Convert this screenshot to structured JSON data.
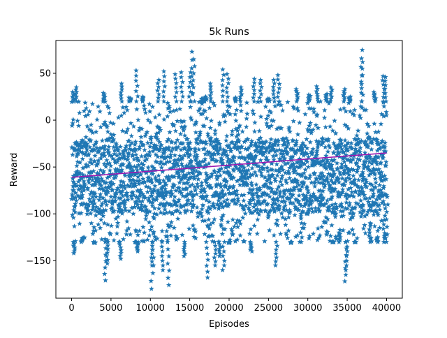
{
  "chart_data": {
    "type": "scatter",
    "title": "5k Runs",
    "xlabel": "Episodes",
    "ylabel": "Reward",
    "xlim": [
      -2000,
      42000
    ],
    "ylim": [
      -190,
      85
    ],
    "xticks": [
      0,
      5000,
      10000,
      15000,
      20000,
      25000,
      30000,
      35000,
      40000
    ],
    "xtick_labels": [
      "0",
      "5000",
      "10000",
      "15000",
      "20000",
      "25000",
      "30000",
      "35000",
      "40000"
    ],
    "yticks": [
      -150,
      -100,
      -50,
      0,
      50
    ],
    "ytick_labels": [
      "−150",
      "−100",
      "−50",
      "0",
      "50"
    ],
    "grid": false,
    "legend": "none",
    "colors": {
      "points": "#1f77b4",
      "trend": "#9e1ab0"
    },
    "series": [
      {
        "kind": "scatter",
        "marker": "star",
        "x_range": [
          0,
          40000
        ],
        "core_band": [
          -100,
          -20
        ],
        "typical_range": [
          -130,
          20
        ],
        "extremes": [
          {
            "x": 200,
            "y": 30
          },
          {
            "x": 300,
            "y": -142
          },
          {
            "x": 600,
            "y": 35
          },
          {
            "x": 1300,
            "y": -126
          },
          {
            "x": 2900,
            "y": -131
          },
          {
            "x": 4100,
            "y": 29
          },
          {
            "x": 4300,
            "y": -171
          },
          {
            "x": 4500,
            "y": -153
          },
          {
            "x": 6300,
            "y": 39
          },
          {
            "x": 6200,
            "y": -148
          },
          {
            "x": 7400,
            "y": 24
          },
          {
            "x": 8100,
            "y": -130
          },
          {
            "x": 8300,
            "y": 53
          },
          {
            "x": 8400,
            "y": -140
          },
          {
            "x": 9100,
            "y": 25
          },
          {
            "x": 10200,
            "y": -180
          },
          {
            "x": 10300,
            "y": -155
          },
          {
            "x": 11000,
            "y": 43
          },
          {
            "x": 11500,
            "y": -160
          },
          {
            "x": 11800,
            "y": 52
          },
          {
            "x": 12300,
            "y": -176
          },
          {
            "x": 13200,
            "y": 49
          },
          {
            "x": 14000,
            "y": 51
          },
          {
            "x": 14300,
            "y": -145
          },
          {
            "x": 15000,
            "y": 51
          },
          {
            "x": 15300,
            "y": 73
          },
          {
            "x": 15500,
            "y": 65
          },
          {
            "x": 16600,
            "y": 23
          },
          {
            "x": 17000,
            "y": 25
          },
          {
            "x": 17200,
            "y": -168
          },
          {
            "x": 17700,
            "y": 39
          },
          {
            "x": 18200,
            "y": -155
          },
          {
            "x": 18800,
            "y": -145
          },
          {
            "x": 19200,
            "y": 54
          },
          {
            "x": 19300,
            "y": -160
          },
          {
            "x": 19800,
            "y": 49
          },
          {
            "x": 20000,
            "y": -131
          },
          {
            "x": 20800,
            "y": 24
          },
          {
            "x": 21500,
            "y": 35
          },
          {
            "x": 22800,
            "y": -140
          },
          {
            "x": 23200,
            "y": 44
          },
          {
            "x": 24000,
            "y": 43
          },
          {
            "x": 25000,
            "y": 23
          },
          {
            "x": 25700,
            "y": 43
          },
          {
            "x": 26000,
            "y": -155
          },
          {
            "x": 26300,
            "y": 48
          },
          {
            "x": 27900,
            "y": -131
          },
          {
            "x": 28600,
            "y": 33
          },
          {
            "x": 29200,
            "y": -100
          },
          {
            "x": 30200,
            "y": 27
          },
          {
            "x": 31200,
            "y": 36
          },
          {
            "x": 32400,
            "y": 28
          },
          {
            "x": 33000,
            "y": 35
          },
          {
            "x": 33200,
            "y": -130
          },
          {
            "x": 34000,
            "y": -120
          },
          {
            "x": 34600,
            "y": 33
          },
          {
            "x": 34800,
            "y": -172
          },
          {
            "x": 34900,
            "y": -160
          },
          {
            "x": 35300,
            "y": 25
          },
          {
            "x": 36000,
            "y": -130
          },
          {
            "x": 36800,
            "y": 75
          },
          {
            "x": 36900,
            "y": 62
          },
          {
            "x": 37900,
            "y": -110
          },
          {
            "x": 38500,
            "y": 30
          },
          {
            "x": 38800,
            "y": -125
          },
          {
            "x": 39600,
            "y": 47
          },
          {
            "x": 39700,
            "y": -102
          },
          {
            "x": 39900,
            "y": 46
          },
          {
            "x": 40100,
            "y": -82
          }
        ]
      },
      {
        "kind": "line",
        "x": [
          0,
          40000
        ],
        "y": [
          -61,
          -35
        ]
      }
    ]
  }
}
